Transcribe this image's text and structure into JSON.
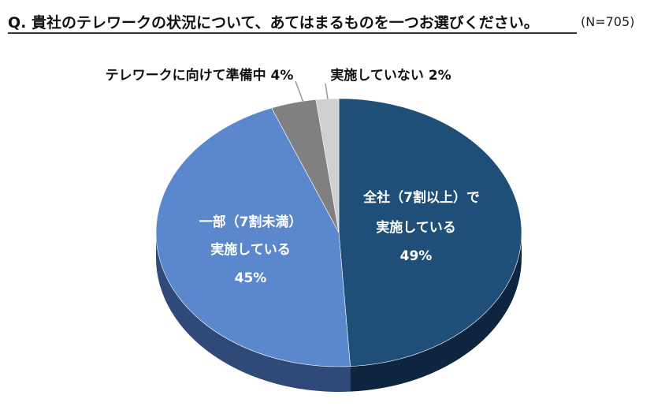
{
  "header": {
    "question": "Q. 貴社のテレワークの状況について、あてはまるものを一つお選びください。",
    "n_label": "(N=705)"
  },
  "chart_data": {
    "type": "pie",
    "categories": [
      "全社（7割以上）で実施している",
      "一部（7割未満）実施している",
      "テレワークに向けて準備中",
      "実施していない"
    ],
    "values": [
      49,
      45,
      4,
      2
    ],
    "unit": "%",
    "colors": [
      "#1f4e79",
      "#5b87cc",
      "#808080",
      "#d0d0d0"
    ],
    "side_colors": [
      "#0e2540",
      "#2f4a78",
      "#4a4a4a",
      "#8a8a8a"
    ],
    "labels": [
      {
        "lines": [
          "全社（7割以上）で",
          "実施している",
          "49%"
        ]
      },
      {
        "lines": [
          "一部（7割未満）",
          "実施している",
          "45%"
        ]
      },
      {
        "lines": [
          "テレワークに向けて準備中 4%"
        ]
      },
      {
        "lines": [
          "実施していない 2%"
        ]
      }
    ],
    "start": "top, clockwise",
    "legend": "none"
  }
}
